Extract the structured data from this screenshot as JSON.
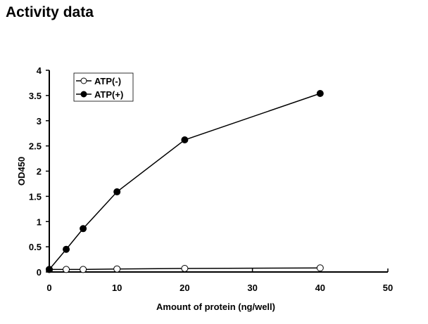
{
  "page_title": "Activity data",
  "chart_data": {
    "type": "line",
    "title": "Activity data",
    "xlabel": "Amount of protein (ng/well)",
    "ylabel": "OD450",
    "xlim": [
      0,
      50
    ],
    "ylim": [
      0,
      4
    ],
    "xticks": [
      0,
      10,
      20,
      30,
      40,
      50
    ],
    "yticks": [
      0,
      0.5,
      1,
      1.5,
      2,
      2.5,
      3,
      3.5,
      4
    ],
    "xtick_labels": [
      "0",
      "10",
      "20",
      "30",
      "40",
      "50"
    ],
    "ytick_labels": [
      "0",
      "0.5",
      "1",
      "1.5",
      "2",
      "2.5",
      "3",
      "3.5",
      "4"
    ],
    "grid": false,
    "legend_position": "top-left",
    "x": [
      0,
      2.5,
      5,
      10,
      20,
      40
    ],
    "series": [
      {
        "name": "ATP(-)",
        "marker": "open-circle",
        "values": [
          0.05,
          0.05,
          0.05,
          0.06,
          0.07,
          0.08
        ]
      },
      {
        "name": "ATP(+)",
        "marker": "filled-circle",
        "values": [
          0.05,
          0.45,
          0.86,
          1.59,
          2.62,
          3.54
        ]
      }
    ]
  }
}
